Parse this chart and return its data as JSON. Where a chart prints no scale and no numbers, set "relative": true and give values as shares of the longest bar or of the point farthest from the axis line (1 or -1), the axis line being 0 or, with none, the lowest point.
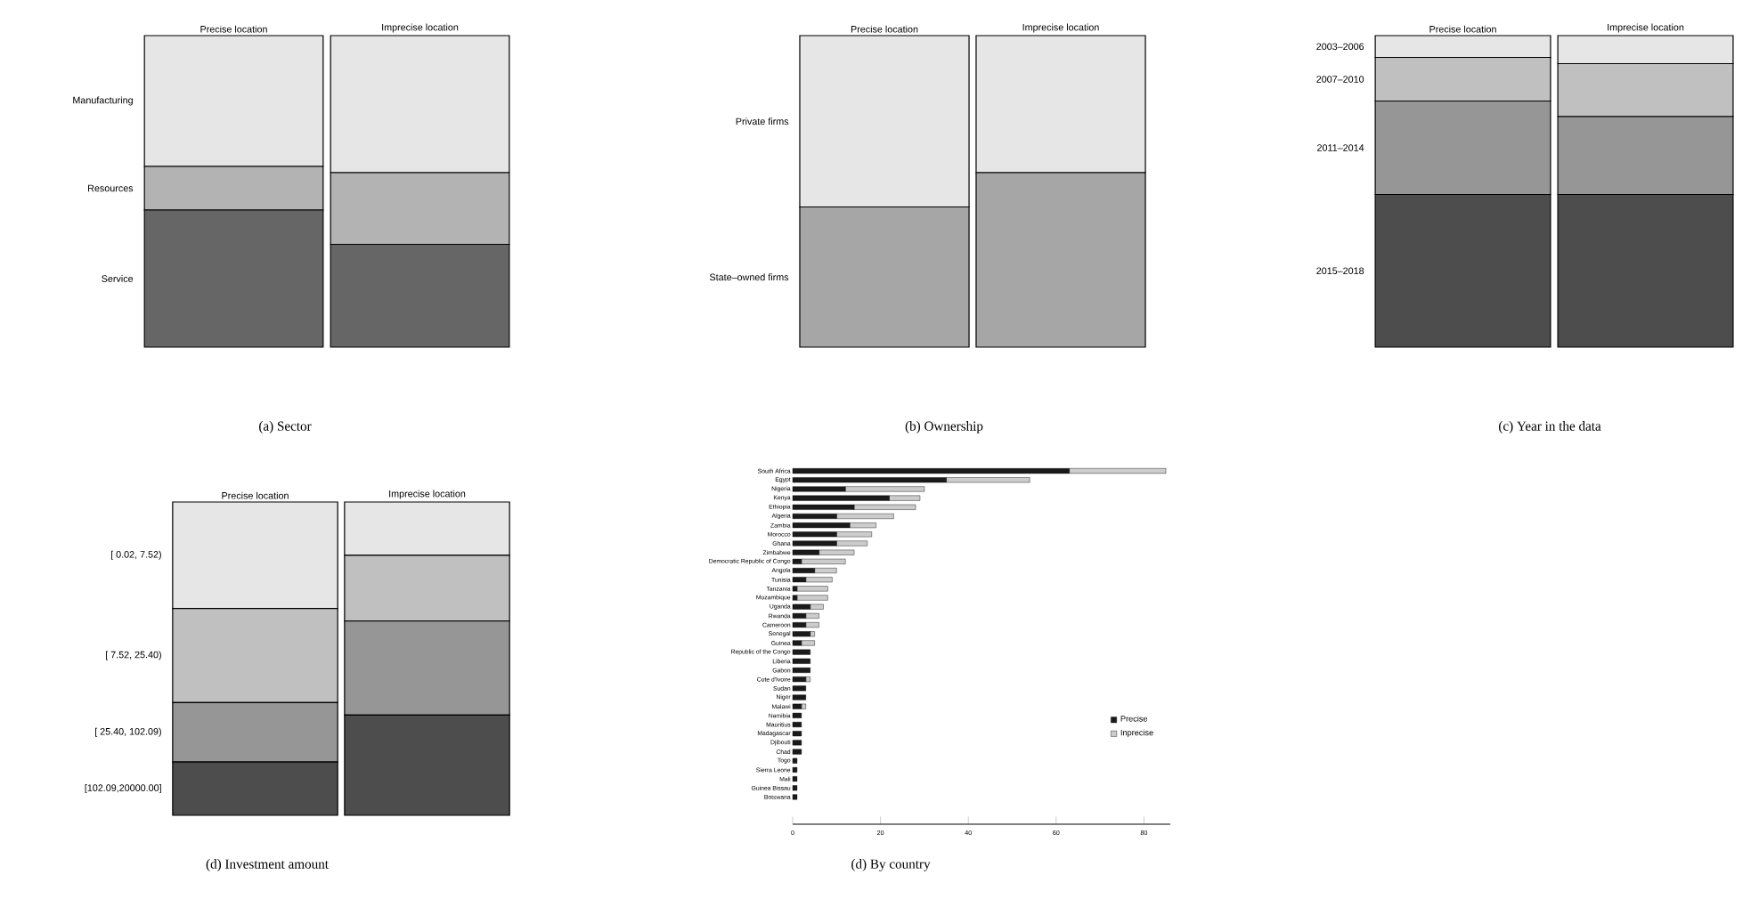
{
  "chart_data": [
    {
      "type": "bar",
      "title": "(a) Sector",
      "stacked": true,
      "relative": true,
      "categories": [
        "Precise location",
        "Imprecise location"
      ],
      "series": [
        {
          "name": "Service",
          "color": "#666666",
          "values": [
            0.44,
            0.33
          ]
        },
        {
          "name": "Resources",
          "color": "#b3b3b3",
          "values": [
            0.14,
            0.23
          ]
        },
        {
          "name": "Manufacturing",
          "color": "#e6e6e6",
          "values": [
            0.42,
            0.44
          ]
        }
      ]
    },
    {
      "type": "bar",
      "title": "(b) Ownership",
      "stacked": true,
      "relative": true,
      "categories": [
        "Precise location",
        "Imprecise location"
      ],
      "series": [
        {
          "name": "State–owned firms",
          "color": "#a6a6a6",
          "values": [
            0.45,
            0.56
          ]
        },
        {
          "name": "Private firms",
          "color": "#e6e6e6",
          "values": [
            0.55,
            0.44
          ]
        }
      ]
    },
    {
      "type": "bar",
      "title": "(c) Year in the data",
      "stacked": true,
      "relative": true,
      "categories": [
        "Precise location",
        "Imprecise location"
      ],
      "series": [
        {
          "name": "2015–2018",
          "color": "#4d4d4d",
          "values": [
            0.49,
            0.49
          ]
        },
        {
          "name": "2011–2014",
          "color": "#969696",
          "values": [
            0.3,
            0.25
          ]
        },
        {
          "name": "2007–2010",
          "color": "#c0c0c0",
          "values": [
            0.14,
            0.17
          ]
        },
        {
          "name": "2003–2006",
          "color": "#e6e6e6",
          "values": [
            0.07,
            0.09
          ]
        }
      ]
    },
    {
      "type": "bar",
      "title": "(d) Investment amount",
      "stacked": true,
      "relative": true,
      "categories": [
        "Precise location",
        "Imprecise location"
      ],
      "series": [
        {
          "name": "[102.09,20000.00]",
          "color": "#4d4d4d",
          "values": [
            0.17,
            0.32
          ]
        },
        {
          "name": "[ 25.40,  102.09)",
          "color": "#969696",
          "values": [
            0.19,
            0.3
          ]
        },
        {
          "name": "[ 7.52,   25.40)",
          "color": "#c0c0c0",
          "values": [
            0.3,
            0.21
          ]
        },
        {
          "name": "[ 0.02,    7.52)",
          "color": "#e6e6e6",
          "values": [
            0.34,
            0.17
          ]
        }
      ]
    },
    {
      "type": "bar",
      "title": "(d) By country",
      "stacked": true,
      "orientation": "horizontal",
      "legend": "bottom right",
      "xlim": [
        0,
        86
      ],
      "xticks": [
        0,
        20,
        40,
        60,
        80
      ],
      "categories": [
        "South Africa",
        "Egypt",
        "Nigeria",
        "Kenya",
        "Ethiopia",
        "Algeria",
        "Zambia",
        "Morocco",
        "Ghana",
        "Zimbabwe",
        "Democratic Republic of Congo",
        "Angola",
        "Tunisia",
        "Tanzania",
        "Mozambique",
        "Uganda",
        "Rwanda",
        "Cameroon",
        "Senegal",
        "Guinea",
        "Republic of the Congo",
        "Liberia",
        "Gabon",
        "Cote d'Ivoire",
        "Sudan",
        "Niger",
        "Malawi",
        "Namibia",
        "Mauritius",
        "Madagascar",
        "Djibouti",
        "Chad",
        "Togo",
        "Sierra Leone",
        "Mali",
        "Guinea Bissau",
        "Botswana"
      ],
      "series": [
        {
          "name": "Precise",
          "color": "#1a1a1a",
          "values": [
            63,
            35,
            12,
            22,
            14,
            10,
            13,
            10,
            10,
            6,
            2,
            5,
            3,
            1,
            1,
            4,
            3,
            3,
            4,
            2,
            4,
            4,
            4,
            3,
            3,
            3,
            2,
            2,
            2,
            2,
            2,
            2,
            1,
            1,
            1,
            1,
            1
          ]
        },
        {
          "name": "Inprecise",
          "color": "#cccccc",
          "values": [
            22,
            19,
            18,
            7,
            14,
            13,
            6,
            8,
            7,
            8,
            10,
            5,
            6,
            7,
            7,
            3,
            3,
            3,
            1,
            3,
            0,
            0,
            0,
            1,
            0,
            0,
            1,
            0,
            0,
            0,
            0,
            0,
            0,
            0,
            0,
            0,
            0
          ]
        }
      ]
    }
  ]
}
